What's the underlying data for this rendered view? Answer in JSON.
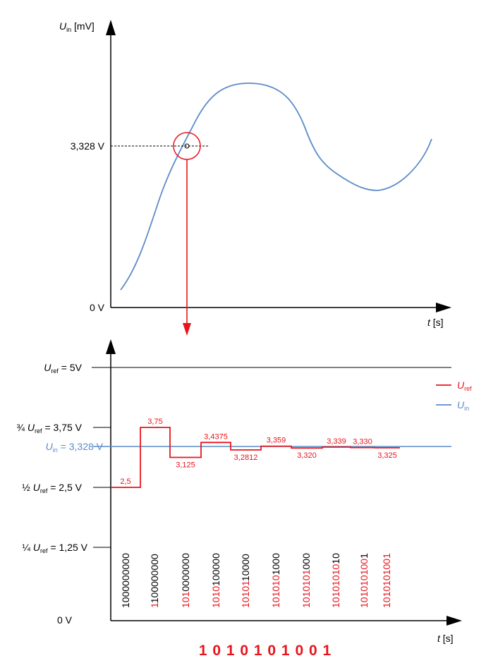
{
  "top_chart": {
    "y_axis_var": "U",
    "y_axis_sub": "in",
    "y_axis_unit": " [mV]",
    "x_axis_var": "t",
    "x_axis_unit": " [s]",
    "sample_label": "3,328 V",
    "zero_label": "0 V",
    "curve_color": "#5b8bc9",
    "marker_color": "#e8141c"
  },
  "bottom_chart": {
    "x_axis_var": "t",
    "x_axis_unit": " [s]",
    "levels": [
      {
        "pre": "",
        "var": "U",
        "sub": "ref",
        "post": " = 5V",
        "value": 5
      },
      {
        "pre": "¾ ",
        "var": "U",
        "sub": "ref",
        "post": " = 3,75 V",
        "value": 3.75
      },
      {
        "pre": "",
        "var": "U",
        "sub": "in",
        "post": " = 3,328 V",
        "value": 3.328
      },
      {
        "pre": "½ ",
        "var": "U",
        "sub": "ref",
        "post": " = 2,5 V",
        "value": 2.5
      },
      {
        "pre": "¼ ",
        "var": "U",
        "sub": "ref",
        "post": " = 1,25 V",
        "value": 1.25
      },
      {
        "pre": "",
        "var": "",
        "sub": "",
        "post": "0 V",
        "value": 0
      }
    ],
    "legend": [
      {
        "var": "U",
        "sub": "ref",
        "color": "#e8141c"
      },
      {
        "var": "U",
        "sub": "in",
        "color": "#5b8bc9"
      }
    ],
    "steps": [
      {
        "label": "2,5",
        "value": 2.5
      },
      {
        "label": "3,75",
        "value": 3.75
      },
      {
        "label": "3,125",
        "value": 3.125
      },
      {
        "label": "3,4375",
        "value": 3.4375
      },
      {
        "label": "3,2812",
        "value": 3.2812
      },
      {
        "label": "3,359",
        "value": 3.359
      },
      {
        "label": "3,320",
        "value": 3.32
      },
      {
        "label": "3,339",
        "value": 3.339
      },
      {
        "label": "3,330",
        "value": 3.33
      },
      {
        "label": "3,325",
        "value": 3.325
      }
    ],
    "codes": [
      {
        "red": "",
        "black": "1000000000"
      },
      {
        "red": "1",
        "black": "100000000"
      },
      {
        "red": "101",
        "black": "0000000"
      },
      {
        "red": "1010",
        "black": "100000"
      },
      {
        "red": "10101",
        "black": "10000"
      },
      {
        "red": "101010",
        "black": "1000"
      },
      {
        "red": "1010101",
        "black": "000"
      },
      {
        "red": "10101010",
        "black": "10"
      },
      {
        "red": "101010100",
        "black": "1"
      },
      {
        "red": "1010101001",
        "black": ""
      }
    ],
    "result": "1 0 1 0 1 0 1 0 0 1"
  }
}
